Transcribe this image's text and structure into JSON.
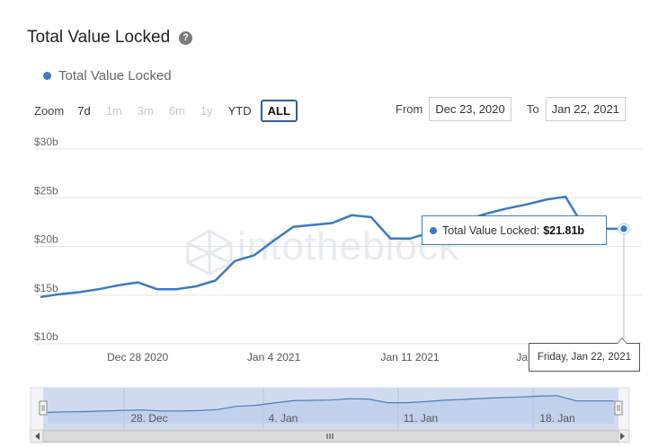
{
  "title": "Total Value Locked",
  "help_icon": "question-circle-icon",
  "legend": {
    "label": "Total Value Locked",
    "color": "#3b7ac4"
  },
  "zoom": {
    "label": "Zoom",
    "buttons": [
      {
        "label": "7d",
        "state": "enabled"
      },
      {
        "label": "1m",
        "state": "disabled"
      },
      {
        "label": "3m",
        "state": "disabled"
      },
      {
        "label": "6m",
        "state": "disabled"
      },
      {
        "label": "1y",
        "state": "disabled"
      },
      {
        "label": "YTD",
        "state": "enabled"
      },
      {
        "label": "ALL",
        "state": "active"
      }
    ]
  },
  "range": {
    "from_label": "From",
    "from_value": "Dec 23, 2020",
    "to_label": "To",
    "to_value": "Jan 22, 2021"
  },
  "tooltip": {
    "series": "Total Value Locked:",
    "value": "$21.81b",
    "date": "Friday, Jan 22, 2021"
  },
  "watermark": "intotheblock",
  "chart_data": {
    "type": "line",
    "title": "Total Value Locked",
    "y_ticks": [
      "$10b",
      "$15b",
      "$20b",
      "$25b",
      "$30b"
    ],
    "ylim": [
      10,
      30
    ],
    "x_ticks": [
      {
        "label": "Dec 28 2020",
        "day": 5
      },
      {
        "label": "Jan 4 2021",
        "day": 12
      },
      {
        "label": "Jan 11 2021",
        "day": 19
      },
      {
        "label": "Jan 18 2021",
        "day": 26
      }
    ],
    "series": [
      {
        "name": "Total Value Locked",
        "color": "#3b7ac4",
        "dates": [
          "Dec 23",
          "Dec 24",
          "Dec 25",
          "Dec 26",
          "Dec 27",
          "Dec 28",
          "Dec 29",
          "Dec 30",
          "Dec 31",
          "Jan 1",
          "Jan 2",
          "Jan 3",
          "Jan 4",
          "Jan 5",
          "Jan 6",
          "Jan 7",
          "Jan 8",
          "Jan 9",
          "Jan 10",
          "Jan 11",
          "Jan 12",
          "Jan 13",
          "Jan 14",
          "Jan 15",
          "Jan 16",
          "Jan 17",
          "Jan 18",
          "Jan 19",
          "Jan 20",
          "Jan 21",
          "Jan 22"
        ],
        "values": [
          14.8,
          15.1,
          15.3,
          15.6,
          16.0,
          16.3,
          15.6,
          15.6,
          15.9,
          16.5,
          18.5,
          19.1,
          20.6,
          22.0,
          22.2,
          22.4,
          23.2,
          23.0,
          20.8,
          20.8,
          21.4,
          22.3,
          22.8,
          23.4,
          23.9,
          24.3,
          24.8,
          25.1,
          21.81,
          21.81,
          21.81
        ]
      }
    ],
    "navigator": {
      "labels": [
        "28. Dec",
        "4. Jan",
        "11. Jan",
        "18. Jan"
      ]
    },
    "grid": true,
    "legend_position": "top-left"
  }
}
